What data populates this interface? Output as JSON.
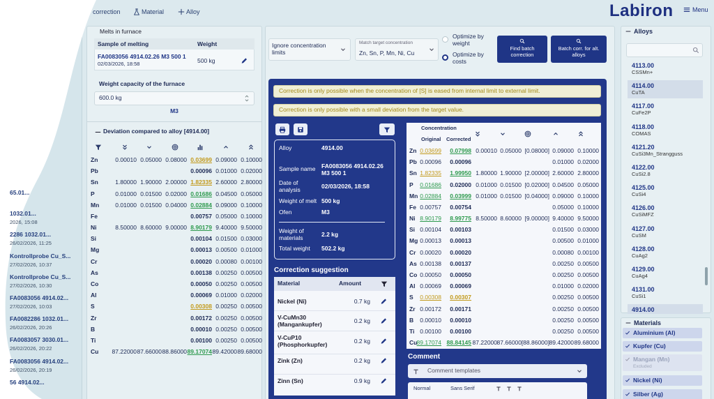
{
  "nav": {
    "links": [
      "correction",
      "Material",
      "Alloy"
    ],
    "logo": "Labiron",
    "menu": "Menu"
  },
  "history": [
    {
      "name": "65.01..."
    },
    {
      "name": "1032.01...",
      "date": "2026, 15:08"
    },
    {
      "name": "2286 1032.01...",
      "date": "26/02/2026, 11:25"
    },
    {
      "name": "Kontrollprobe Cu_S...",
      "date": "27/02/2026, 10:37"
    },
    {
      "name": "Kontrollprobe Cu_S...",
      "date": "27/02/2026, 10:30"
    },
    {
      "name": "FA0083056 4914.02...",
      "date": "27/02/2026, 10:03"
    },
    {
      "name": "FA0082286 1032.01...",
      "date": "26/02/2026, 20:26"
    },
    {
      "name": "FA0083057 3030.01...",
      "date": "26/02/2026, 20:22"
    },
    {
      "name": "FA0083056 4914.02...",
      "date": "26/02/2026, 20:19"
    },
    {
      "name": "56 4914.02..."
    }
  ],
  "melts": {
    "title": "Melts in furnace",
    "headers": [
      "Sample of melting",
      "Weight"
    ],
    "sample": "FA0083056 4914.02.26 M3 500 1",
    "date": "02/03/2026, 18:58",
    "weight": "500 kg",
    "capacity_label": "Weight capacity of the furnace",
    "capacity": "600.0 kg",
    "furnace": "M3"
  },
  "deviation": {
    "title": "Deviation compared to alloy [4914.00]",
    "rows": [
      {
        "element": "Zn",
        "values": [
          "0.00010",
          "0.05000",
          "0.08000",
          "0.03699",
          "0.09000",
          "0.10000"
        ],
        "status": "warning"
      },
      {
        "element": "Pb",
        "values": [
          null,
          null,
          null,
          "0.00096",
          "0.01000",
          "0.02000"
        ]
      },
      {
        "element": "Sn",
        "values": [
          "1.80000",
          "1.90000",
          "2.00000",
          "1.82335",
          "2.60000",
          "2.80000"
        ],
        "status": "warning"
      },
      {
        "element": "P",
        "values": [
          "0.01000",
          "0.01500",
          "0.02000",
          "0.01686",
          "0.04500",
          "0.05000"
        ],
        "status": "ok"
      },
      {
        "element": "Mn",
        "values": [
          "0.01000",
          "0.01500",
          "0.04000",
          "0.02884",
          "0.09000",
          "0.10000"
        ],
        "status": "ok"
      },
      {
        "element": "Fe",
        "values": [
          null,
          null,
          null,
          "0.00757",
          "0.05000",
          "0.10000"
        ]
      },
      {
        "element": "Ni",
        "values": [
          "8.50000",
          "8.60000",
          "9.00000",
          "8.90179",
          "9.40000",
          "9.50000"
        ],
        "status": "ok"
      },
      {
        "element": "Si",
        "values": [
          null,
          null,
          null,
          "0.00104",
          "0.01500",
          "0.03000"
        ]
      },
      {
        "element": "Mg",
        "values": [
          null,
          null,
          null,
          "0.00013",
          "0.00500",
          "0.01000"
        ]
      },
      {
        "element": "Cr",
        "values": [
          null,
          null,
          null,
          "0.00020",
          "0.00080",
          "0.00100"
        ]
      },
      {
        "element": "As",
        "values": [
          null,
          null,
          null,
          "0.00138",
          "0.00250",
          "0.00500"
        ]
      },
      {
        "element": "Co",
        "values": [
          null,
          null,
          null,
          "0.00050",
          "0.00250",
          "0.00500"
        ]
      },
      {
        "element": "Al",
        "values": [
          null,
          null,
          null,
          "0.00069",
          "0.01000",
          "0.02000"
        ]
      },
      {
        "element": "S",
        "values": [
          null,
          null,
          null,
          "0.00308",
          "0.00250",
          "0.00500"
        ],
        "status": "warning"
      },
      {
        "element": "Zr",
        "values": [
          null,
          null,
          null,
          "0.00172",
          "0.00250",
          "0.00500"
        ]
      },
      {
        "element": "B",
        "values": [
          null,
          null,
          null,
          "0.00010",
          "0.00250",
          "0.00500"
        ]
      },
      {
        "element": "Ti",
        "values": [
          null,
          null,
          null,
          "0.00100",
          "0.00250",
          "0.00500"
        ]
      },
      {
        "element": "Cu",
        "values": [
          "87.22000",
          "87.66000",
          "88.86000",
          "89.17074",
          "89.42000",
          "89.68000"
        ],
        "status": "ok"
      }
    ]
  },
  "controls": {
    "ignore": "Ignore concentration limits",
    "match_label": "Match target concentration",
    "match_value": "Zn, Sn, P, Mn, Ni, Cu",
    "optimize": [
      "Optimize by weight",
      "Optimize by costs"
    ],
    "buttons": [
      "Find batch correction",
      "Batch corr. for alt. alloys"
    ]
  },
  "warnings": [
    "Correction is only possible when the concentration of [S] is eased from internal limit to external limit.",
    "Correction is only possible with a small deviation from the target value."
  ],
  "summary": [
    {
      "label": "Alloy",
      "value": "4914.00"
    },
    {
      "label": "Sample name",
      "value": "FA0083056 4914.02.26 M3 500 1"
    },
    {
      "label": "Date of analysis",
      "value": "02/03/2026, 18:58"
    },
    {
      "label": "Weight of melt",
      "value": "500 kg"
    },
    {
      "label": "Ofen",
      "value": "M3"
    },
    {
      "label": "Weight of materials",
      "value": "2.2 kg"
    },
    {
      "label": "Total weight",
      "value": "502.2 kg"
    }
  ],
  "suggestion": {
    "title": "Correction suggestion",
    "headers": [
      "Material",
      "Amount"
    ],
    "rows": [
      {
        "material": "Nickel (Ni)",
        "amount": "0.7 kg"
      },
      {
        "material": "V-CuMn30 (Mangankupfer)",
        "amount": "0.2 kg"
      },
      {
        "material": "V-CuP10 (Phosphorkupfer)",
        "amount": "0.2 kg"
      },
      {
        "material": "Zink (Zn)",
        "amount": "0.2 kg"
      },
      {
        "material": "Zinn (Sn)",
        "amount": "0.9 kg"
      }
    ]
  },
  "concentration": {
    "title": "Concentration",
    "headers": [
      "Original",
      "Corrected"
    ],
    "rows": [
      {
        "element": "Zn",
        "original": "0.03699",
        "corrected": "0.07998",
        "limits": [
          "0.00010",
          "0.05000",
          "[0.08000]",
          "0.09000",
          "0.10000"
        ],
        "original_status": "warning",
        "corrected_status": "ok"
      },
      {
        "element": "Pb",
        "original": "0.00096",
        "corrected": "0.00096",
        "limits": [
          null,
          null,
          null,
          "0.01000",
          "0.02000"
        ]
      },
      {
        "element": "Sn",
        "original": "1.82335",
        "corrected": "1.99950",
        "limits": [
          "1.80000",
          "1.90000",
          "[2.00000]",
          "2.60000",
          "2.80000"
        ],
        "original_status": "warning",
        "corrected_status": "ok"
      },
      {
        "element": "P",
        "original": "0.01686",
        "corrected": "0.02000",
        "limits": [
          "0.01000",
          "0.01500",
          "[0.02000]",
          "0.04500",
          "0.05000"
        ],
        "original_status": "ok"
      },
      {
        "element": "Mn",
        "original": "0.02884",
        "corrected": "0.03999",
        "limits": [
          "0.01000",
          "0.01500",
          "[0.04000]",
          "0.09000",
          "0.10000"
        ],
        "original_status": "ok",
        "corrected_status": "ok"
      },
      {
        "element": "Fe",
        "original": "0.00757",
        "corrected": "0.00754",
        "limits": [
          null,
          null,
          null,
          "0.05000",
          "0.10000"
        ]
      },
      {
        "element": "Ni",
        "original": "8.90179",
        "corrected": "8.99775",
        "limits": [
          "8.50000",
          "8.60000",
          "[9.00000]",
          "9.40000",
          "9.50000"
        ],
        "original_status": "ok",
        "corrected_status": "ok"
      },
      {
        "element": "Si",
        "original": "0.00104",
        "corrected": "0.00103",
        "limits": [
          null,
          null,
          null,
          "0.01500",
          "0.03000"
        ]
      },
      {
        "element": "Mg",
        "original": "0.00013",
        "corrected": "0.00013",
        "limits": [
          null,
          null,
          null,
          "0.00500",
          "0.01000"
        ]
      },
      {
        "element": "Cr",
        "original": "0.00020",
        "corrected": "0.00020",
        "limits": [
          null,
          null,
          null,
          "0.00080",
          "0.00100"
        ]
      },
      {
        "element": "As",
        "original": "0.00138",
        "corrected": "0.00137",
        "limits": [
          null,
          null,
          null,
          "0.00250",
          "0.00500"
        ]
      },
      {
        "element": "Co",
        "original": "0.00050",
        "corrected": "0.00050",
        "limits": [
          null,
          null,
          null,
          "0.00250",
          "0.00500"
        ]
      },
      {
        "element": "Al",
        "original": "0.00069",
        "corrected": "0.00069",
        "limits": [
          null,
          null,
          null,
          "0.01000",
          "0.02000"
        ]
      },
      {
        "element": "S",
        "original": "0.00308",
        "corrected": "0.00307",
        "limits": [
          null,
          null,
          null,
          "0.00250",
          "0.00500"
        ],
        "original_status": "warning",
        "corrected_status": "warning"
      },
      {
        "element": "Zr",
        "original": "0.00172",
        "corrected": "0.00171",
        "limits": [
          null,
          null,
          null,
          "0.00250",
          "0.00500"
        ]
      },
      {
        "element": "B",
        "original": "0.00010",
        "corrected": "0.00010",
        "limits": [
          null,
          null,
          null,
          "0.00250",
          "0.00500"
        ]
      },
      {
        "element": "Ti",
        "original": "0.00100",
        "corrected": "0.00100",
        "limits": [
          null,
          null,
          null,
          "0.00250",
          "0.00500"
        ]
      },
      {
        "element": "Cu",
        "original": "89.17074",
        "corrected": "88.84145",
        "limits": [
          "87.22000",
          "87.66000",
          "[88.86000]",
          "89.42000",
          "89.68000"
        ],
        "original_status": "ok",
        "corrected_status": "ok"
      }
    ]
  },
  "comment": {
    "title": "Comment",
    "templates": "Comment templates",
    "format": "Normal",
    "font": "Sans Serif"
  },
  "alloys": {
    "title": "Alloys",
    "items": [
      {
        "code": "4113.00",
        "name": "CSSMn+"
      },
      {
        "code": "4114.00",
        "name": "CuTA",
        "highlighted": true
      },
      {
        "code": "4117.00",
        "name": "CuFe2P"
      },
      {
        "code": "4118.00",
        "name": "COMAS"
      },
      {
        "code": "4121.20",
        "name": "CuSi3Mn_Strangguss"
      },
      {
        "code": "4122.00",
        "name": "CuSi2.8"
      },
      {
        "code": "4125.00",
        "name": "CuSi4"
      },
      {
        "code": "4126.00",
        "name": "CuSiMFZ"
      },
      {
        "code": "4127.00",
        "name": "CuSM"
      },
      {
        "code": "4128.00",
        "name": "CuAg2"
      },
      {
        "code": "4129.00",
        "name": "CuAg4"
      },
      {
        "code": "4131.00",
        "name": "CuSi1"
      },
      {
        "code": "4914.00",
        "highlighted": true
      }
    ]
  },
  "materials": {
    "title": "Materials",
    "items": [
      {
        "name": "Aluminium (Al)"
      },
      {
        "name": "Kupfer (Cu)"
      },
      {
        "name": "Mangan (Mn)",
        "note": "Excluded"
      },
      {
        "name": "Nickel (Ni)"
      },
      {
        "name": "Silber (Ag)"
      }
    ]
  }
}
